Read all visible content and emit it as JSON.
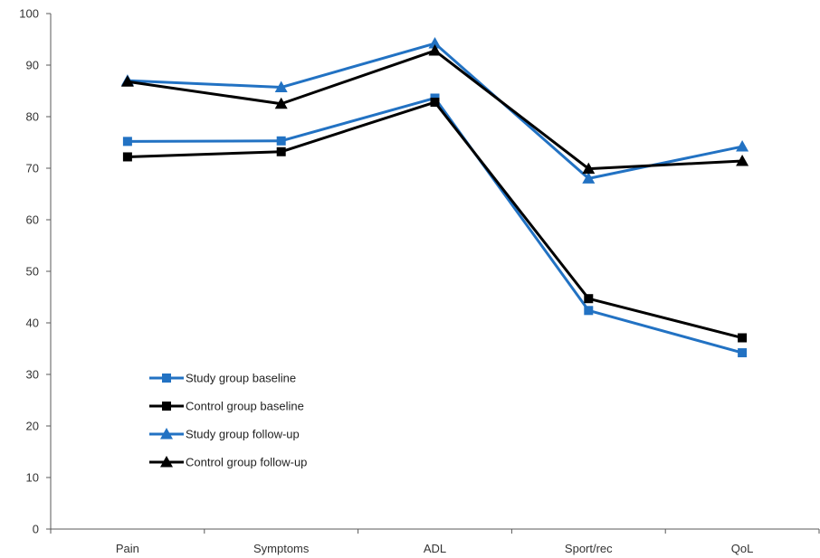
{
  "chart_data": {
    "type": "line",
    "categories": [
      "Pain",
      "Symptoms",
      "ADL",
      "Sport/rec",
      "QoL"
    ],
    "ylim": [
      0,
      100
    ],
    "yticks": [
      0,
      10,
      20,
      30,
      40,
      50,
      60,
      70,
      80,
      90,
      100
    ],
    "grid": false,
    "legend_position": "lower-left",
    "series": [
      {
        "name": "Study group baseline",
        "color": "#2272C3",
        "marker": "square",
        "values": [
          75.2,
          75.3,
          83.6,
          42.4,
          34.2
        ]
      },
      {
        "name": "Control group baseline",
        "color": "#000000",
        "marker": "square",
        "values": [
          72.2,
          73.2,
          82.8,
          44.7,
          37.1
        ]
      },
      {
        "name": "Study group follow-up",
        "color": "#2272C3",
        "marker": "triangle",
        "values": [
          87.0,
          85.7,
          94.2,
          68.0,
          74.2
        ]
      },
      {
        "name": "Control group follow-up",
        "color": "#000000",
        "marker": "triangle",
        "values": [
          86.8,
          82.5,
          92.8,
          69.9,
          71.4
        ]
      }
    ]
  }
}
